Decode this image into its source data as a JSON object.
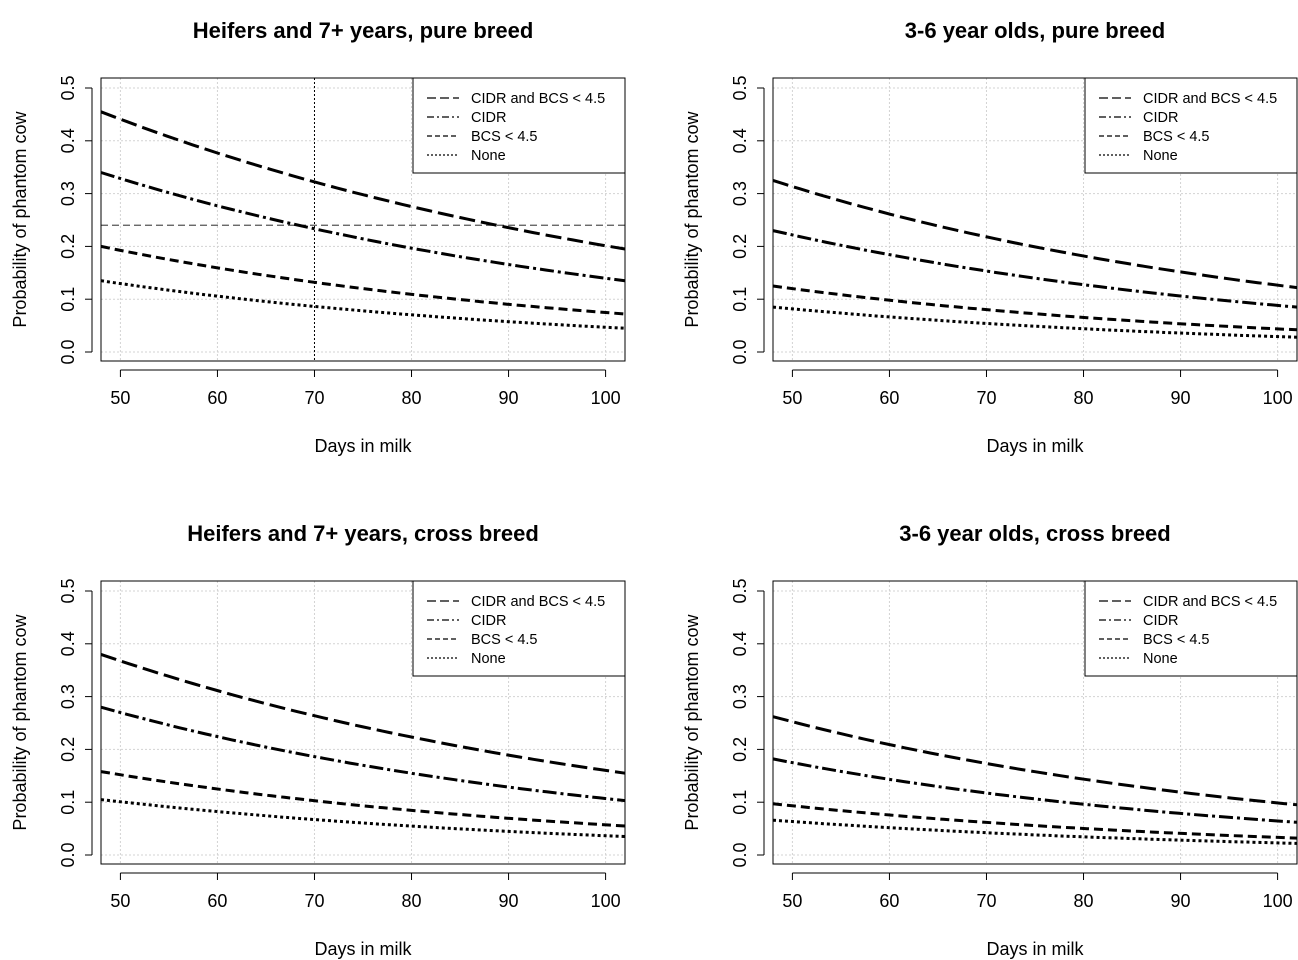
{
  "chart_data": [
    {
      "type": "line",
      "title": "Heifers and 7+ years, pure breed",
      "xlabel": "Days in milk",
      "ylabel": "Probability of phantom cow",
      "xlim": [
        48,
        102
      ],
      "ylim": [
        0,
        0.5
      ],
      "xticks": [
        "50",
        "60",
        "70",
        "80",
        "90",
        "100"
      ],
      "yticks": [
        "0.0",
        "0.1",
        "0.2",
        "0.3",
        "0.4",
        "0.5"
      ],
      "grid": true,
      "legend_position": "top-right",
      "x": [
        48,
        102
      ],
      "series": [
        {
          "name": "CIDR and BCS < 4.5",
          "values": [
            0.455,
            0.195
          ]
        },
        {
          "name": "CIDR",
          "values": [
            0.34,
            0.135
          ]
        },
        {
          "name": "BCS < 4.5",
          "values": [
            0.2,
            0.072
          ]
        },
        {
          "name": "None",
          "values": [
            0.135,
            0.045
          ]
        }
      ],
      "reference_lines": {
        "vertical_x": 70,
        "horizontal_y": 0.24
      }
    },
    {
      "type": "line",
      "title": "3-6 year olds, pure breed",
      "xlabel": "Days in milk",
      "ylabel": "Probability of phantom cow",
      "xlim": [
        48,
        102
      ],
      "ylim": [
        0,
        0.5
      ],
      "xticks": [
        "50",
        "60",
        "70",
        "80",
        "90",
        "100"
      ],
      "yticks": [
        "0.0",
        "0.1",
        "0.2",
        "0.3",
        "0.4",
        "0.5"
      ],
      "grid": true,
      "legend_position": "top-right",
      "x": [
        48,
        102
      ],
      "series": [
        {
          "name": "CIDR and BCS < 4.5",
          "values": [
            0.325,
            0.122
          ]
        },
        {
          "name": "CIDR",
          "values": [
            0.23,
            0.085
          ]
        },
        {
          "name": "BCS < 4.5",
          "values": [
            0.125,
            0.042
          ]
        },
        {
          "name": "None",
          "values": [
            0.085,
            0.028
          ]
        }
      ]
    },
    {
      "type": "line",
      "title": "Heifers and 7+ years, cross breed",
      "xlabel": "Days in milk",
      "ylabel": "Probability of phantom cow",
      "xlim": [
        48,
        102
      ],
      "ylim": [
        0,
        0.5
      ],
      "xticks": [
        "50",
        "60",
        "70",
        "80",
        "90",
        "100"
      ],
      "yticks": [
        "0.0",
        "0.1",
        "0.2",
        "0.3",
        "0.4",
        "0.5"
      ],
      "grid": true,
      "legend_position": "top-right",
      "x": [
        48,
        102
      ],
      "series": [
        {
          "name": "CIDR and BCS < 4.5",
          "values": [
            0.38,
            0.155
          ]
        },
        {
          "name": "CIDR",
          "values": [
            0.28,
            0.103
          ]
        },
        {
          "name": "BCS < 4.5",
          "values": [
            0.158,
            0.055
          ]
        },
        {
          "name": "None",
          "values": [
            0.105,
            0.035
          ]
        }
      ]
    },
    {
      "type": "line",
      "title": "3-6 year olds, cross breed",
      "xlabel": "Days in milk",
      "ylabel": "Probability of phantom cow",
      "xlim": [
        48,
        102
      ],
      "ylim": [
        0,
        0.5
      ],
      "xticks": [
        "50",
        "60",
        "70",
        "80",
        "90",
        "100"
      ],
      "yticks": [
        "0.0",
        "0.1",
        "0.2",
        "0.3",
        "0.4",
        "0.5"
      ],
      "grid": true,
      "legend_position": "top-right",
      "x": [
        48,
        102
      ],
      "series": [
        {
          "name": "CIDR and BCS < 4.5",
          "values": [
            0.262,
            0.095
          ]
        },
        {
          "name": "CIDR",
          "values": [
            0.182,
            0.062
          ]
        },
        {
          "name": "BCS < 4.5",
          "values": [
            0.097,
            0.032
          ]
        },
        {
          "name": "None",
          "values": [
            0.066,
            0.022
          ]
        }
      ]
    }
  ]
}
